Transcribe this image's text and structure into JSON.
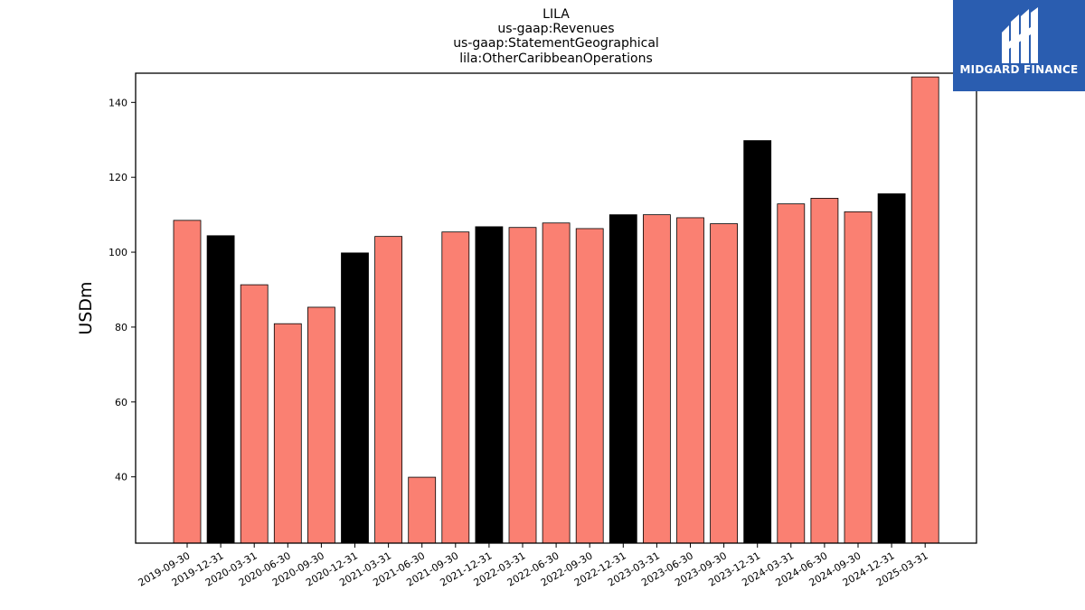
{
  "chart_data": {
    "type": "bar",
    "title_lines": [
      "LILA",
      "us-gaap:Revenues",
      "us-gaap:StatementGeographical",
      "lila:OtherCaribbeanOperations"
    ],
    "xlabel": "",
    "ylabel": "USDm",
    "ylim": [
      22.3,
      147.8
    ],
    "yticks": [
      40,
      60,
      80,
      100,
      120,
      140
    ],
    "categories": [
      "2019-09-30",
      "2019-12-31",
      "2020-03-31",
      "2020-06-30",
      "2020-09-30",
      "2020-12-31",
      "2021-03-31",
      "2021-06-30",
      "2021-09-30",
      "2021-12-31",
      "2022-03-31",
      "2022-06-30",
      "2022-09-30",
      "2022-12-31",
      "2023-03-31",
      "2023-06-30",
      "2023-09-30",
      "2023-12-31",
      "2024-03-31",
      "2024-06-30",
      "2024-09-30",
      "2024-12-31",
      "2025-03-31"
    ],
    "values": [
      108.5,
      104.4,
      91.3,
      80.9,
      85.3,
      99.8,
      104.2,
      39.9,
      105.4,
      106.8,
      106.6,
      107.8,
      106.3,
      110.0,
      110.0,
      109.2,
      107.6,
      129.8,
      112.9,
      114.4,
      110.8,
      115.6,
      146.8
    ],
    "colors": {
      "quarter": "#fa8072",
      "year_end": "#000000",
      "edge": "#000000"
    },
    "grid": false,
    "legend": "none"
  },
  "logo": {
    "text": "MIDGARD FINANCE",
    "bg_color": "#2a5db0",
    "icon": "midgard-m-logo-icon"
  }
}
